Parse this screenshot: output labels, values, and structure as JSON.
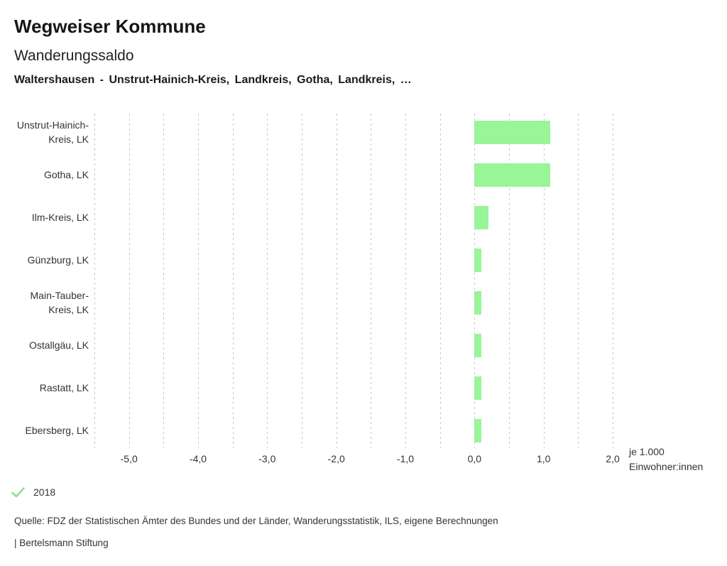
{
  "header": {
    "app_title": "Wegweiser Kommune",
    "chart_title": "Wanderungssaldo",
    "subtitle": "Waltershausen - Unstrut-Hainich-Kreis, Landkreis, Gotha, Landkreis, …"
  },
  "chart_data": {
    "type": "bar",
    "orientation": "horizontal",
    "title": "Wanderungssaldo",
    "categories": [
      "Unstrut-Hainich-Kreis, LK",
      "Gotha, LK",
      "Ilm-Kreis, LK",
      "Günzburg, LK",
      "Main-Tauber-Kreis, LK",
      "Ostallgäu, LK",
      "Rastatt, LK",
      "Ebersberg, LK"
    ],
    "series": [
      {
        "name": "2018",
        "values": [
          1.1,
          1.1,
          0.2,
          0.1,
          0.1,
          0.1,
          0.1,
          0.1
        ]
      }
    ],
    "xlim": [
      -5.5,
      2.0
    ],
    "x_ticks": [
      -5.0,
      -4.0,
      -3.0,
      -2.0,
      -1.0,
      0.0,
      1.0,
      2.0
    ],
    "x_tick_labels": [
      "-5,0",
      "-4,0",
      "-3,0",
      "-2,0",
      "-1,0",
      "0,0",
      "1,0",
      "2,0"
    ],
    "gridline_step": 0.5,
    "grid": true,
    "legend_position": "bottom-left",
    "unit_lines": [
      "je 1.000",
      "Einwohner:innen"
    ],
    "bar_color": "#98f598",
    "grid_color": "#c7c7c7"
  },
  "legend": {
    "check_icon_color": "#8be08b",
    "year": "2018"
  },
  "footer": {
    "source": "Quelle: FDZ der Statistischen Ämter des Bundes und der Länder, Wanderungsstatistik, ILS, eigene Berechnungen",
    "branding": "| Bertelsmann Stiftung"
  }
}
